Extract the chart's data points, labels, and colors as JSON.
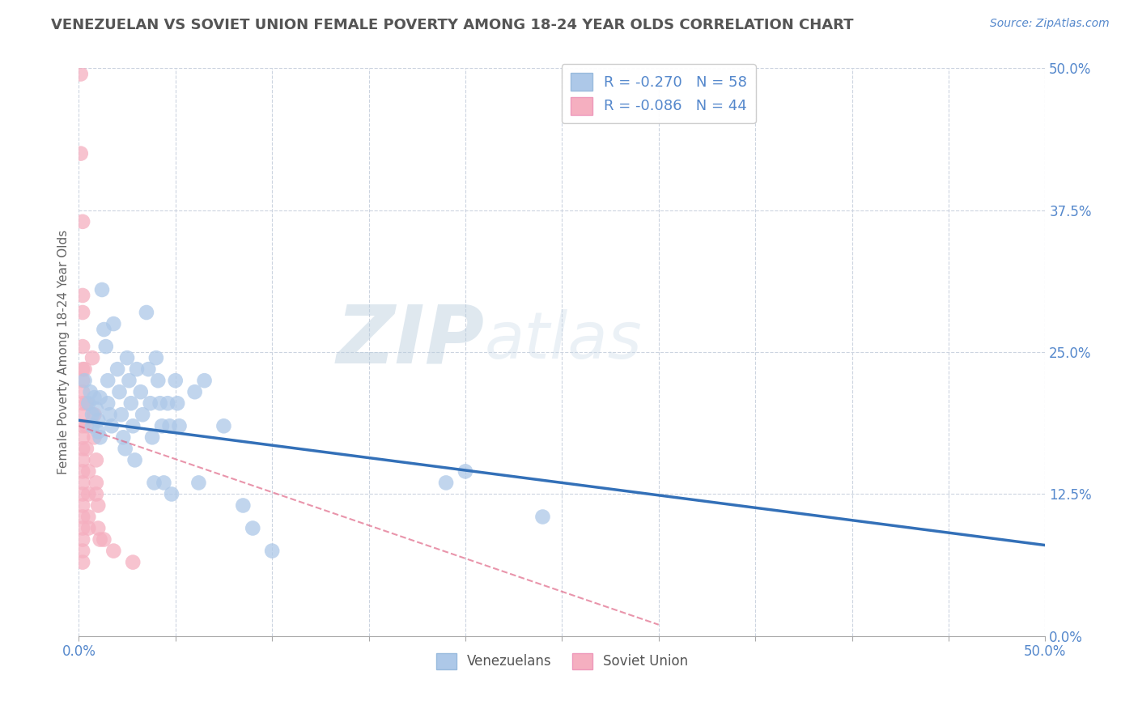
{
  "title": "VENEZUELAN VS SOVIET UNION FEMALE POVERTY AMONG 18-24 YEAR OLDS CORRELATION CHART",
  "source": "Source: ZipAtlas.com",
  "ylabel": "Female Poverty Among 18-24 Year Olds",
  "ytick_values": [
    0.0,
    0.125,
    0.25,
    0.375,
    0.5
  ],
  "ytick_labels": [
    "0.0%",
    "12.5%",
    "25.0%",
    "37.5%",
    "50.0%"
  ],
  "xtick_minor_values": [
    0.0,
    0.05,
    0.1,
    0.15,
    0.2,
    0.25,
    0.3,
    0.35,
    0.4,
    0.45,
    0.5
  ],
  "blue_R": -0.27,
  "blue_N": 58,
  "pink_R": -0.086,
  "pink_N": 44,
  "blue_color": "#adc8e8",
  "pink_color": "#f5afc0",
  "blue_line_color": "#3370b8",
  "pink_line_color": "#e06888",
  "blue_scatter": [
    [
      0.003,
      0.225
    ],
    [
      0.005,
      0.205
    ],
    [
      0.006,
      0.215
    ],
    [
      0.007,
      0.195
    ],
    [
      0.007,
      0.185
    ],
    [
      0.008,
      0.21
    ],
    [
      0.009,
      0.2
    ],
    [
      0.01,
      0.19
    ],
    [
      0.01,
      0.18
    ],
    [
      0.011,
      0.21
    ],
    [
      0.011,
      0.175
    ],
    [
      0.012,
      0.305
    ],
    [
      0.013,
      0.27
    ],
    [
      0.014,
      0.255
    ],
    [
      0.015,
      0.225
    ],
    [
      0.015,
      0.205
    ],
    [
      0.016,
      0.195
    ],
    [
      0.017,
      0.185
    ],
    [
      0.018,
      0.275
    ],
    [
      0.02,
      0.235
    ],
    [
      0.021,
      0.215
    ],
    [
      0.022,
      0.195
    ],
    [
      0.023,
      0.175
    ],
    [
      0.024,
      0.165
    ],
    [
      0.025,
      0.245
    ],
    [
      0.026,
      0.225
    ],
    [
      0.027,
      0.205
    ],
    [
      0.028,
      0.185
    ],
    [
      0.029,
      0.155
    ],
    [
      0.03,
      0.235
    ],
    [
      0.032,
      0.215
    ],
    [
      0.033,
      0.195
    ],
    [
      0.035,
      0.285
    ],
    [
      0.036,
      0.235
    ],
    [
      0.037,
      0.205
    ],
    [
      0.038,
      0.175
    ],
    [
      0.039,
      0.135
    ],
    [
      0.04,
      0.245
    ],
    [
      0.041,
      0.225
    ],
    [
      0.042,
      0.205
    ],
    [
      0.043,
      0.185
    ],
    [
      0.044,
      0.135
    ],
    [
      0.046,
      0.205
    ],
    [
      0.047,
      0.185
    ],
    [
      0.048,
      0.125
    ],
    [
      0.05,
      0.225
    ],
    [
      0.051,
      0.205
    ],
    [
      0.052,
      0.185
    ],
    [
      0.06,
      0.215
    ],
    [
      0.062,
      0.135
    ],
    [
      0.065,
      0.225
    ],
    [
      0.075,
      0.185
    ],
    [
      0.085,
      0.115
    ],
    [
      0.09,
      0.095
    ],
    [
      0.1,
      0.075
    ],
    [
      0.19,
      0.135
    ],
    [
      0.2,
      0.145
    ],
    [
      0.24,
      0.105
    ]
  ],
  "pink_scatter": [
    [
      0.001,
      0.495
    ],
    [
      0.001,
      0.425
    ],
    [
      0.002,
      0.365
    ],
    [
      0.002,
      0.3
    ],
    [
      0.002,
      0.285
    ],
    [
      0.002,
      0.255
    ],
    [
      0.002,
      0.235
    ],
    [
      0.002,
      0.225
    ],
    [
      0.002,
      0.215
    ],
    [
      0.002,
      0.205
    ],
    [
      0.002,
      0.195
    ],
    [
      0.002,
      0.185
    ],
    [
      0.002,
      0.175
    ],
    [
      0.002,
      0.165
    ],
    [
      0.002,
      0.155
    ],
    [
      0.002,
      0.145
    ],
    [
      0.002,
      0.135
    ],
    [
      0.002,
      0.125
    ],
    [
      0.002,
      0.115
    ],
    [
      0.002,
      0.105
    ],
    [
      0.002,
      0.095
    ],
    [
      0.002,
      0.085
    ],
    [
      0.002,
      0.075
    ],
    [
      0.002,
      0.065
    ],
    [
      0.003,
      0.235
    ],
    [
      0.004,
      0.205
    ],
    [
      0.004,
      0.185
    ],
    [
      0.004,
      0.165
    ],
    [
      0.005,
      0.145
    ],
    [
      0.005,
      0.125
    ],
    [
      0.005,
      0.105
    ],
    [
      0.005,
      0.095
    ],
    [
      0.007,
      0.245
    ],
    [
      0.008,
      0.195
    ],
    [
      0.008,
      0.175
    ],
    [
      0.009,
      0.155
    ],
    [
      0.009,
      0.135
    ],
    [
      0.009,
      0.125
    ],
    [
      0.01,
      0.115
    ],
    [
      0.01,
      0.095
    ],
    [
      0.011,
      0.085
    ],
    [
      0.013,
      0.085
    ],
    [
      0.018,
      0.075
    ],
    [
      0.028,
      0.065
    ]
  ],
  "blue_line_x": [
    0.0,
    0.5
  ],
  "blue_line_y": [
    0.19,
    0.08
  ],
  "pink_line_x": [
    0.0,
    0.3
  ],
  "pink_line_y": [
    0.185,
    0.01
  ],
  "watermark_zip": "ZIP",
  "watermark_atlas": "atlas",
  "legend_blue_label": "R = -0.270   N = 58",
  "legend_pink_label": "R = -0.086   N = 44",
  "legend_bottom_blue": "Venezuelans",
  "legend_bottom_pink": "Soviet Union",
  "xlim": [
    0.0,
    0.5
  ],
  "ylim": [
    0.0,
    0.5
  ],
  "background_color": "#ffffff",
  "title_color": "#555555",
  "axis_label_color": "#5588cc",
  "grid_color": "#ccd4e0",
  "ylabel_color": "#666666",
  "title_fontsize": 13,
  "source_fontsize": 10
}
